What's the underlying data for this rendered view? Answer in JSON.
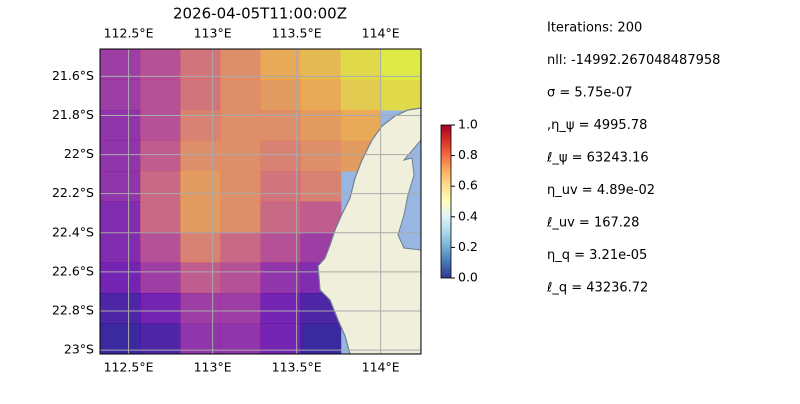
{
  "chart_data": {
    "type": "map",
    "title": "2026-04-05T11:00:00Z",
    "xlim": [
      112.33,
      114.24
    ],
    "ylim": [
      23.02,
      21.46
    ],
    "xticks": [
      {
        "value": 112.5,
        "label": "112.5°E"
      },
      {
        "value": 113,
        "label": "113°E"
      },
      {
        "value": 113.5,
        "label": "113.5°E"
      },
      {
        "value": 114,
        "label": "114°E"
      }
    ],
    "yticks": [
      {
        "value": 21.6,
        "label": "21.6°S"
      },
      {
        "value": 21.8,
        "label": "21.8°S"
      },
      {
        "value": 22,
        "label": "22°S"
      },
      {
        "value": 22.2,
        "label": "22.2°S"
      },
      {
        "value": 22.4,
        "label": "22.4°S"
      },
      {
        "value": 22.6,
        "label": "22.6°S"
      },
      {
        "value": 22.8,
        "label": "22.8°S"
      },
      {
        "value": 23,
        "label": "23°S"
      }
    ],
    "grid": true,
    "field_colors": [
      "#0d0887",
      "#6a00a8",
      "#b12a90",
      "#e16462",
      "#fca636",
      "#f0f921"
    ],
    "field": [
      [
        0.35,
        0.45,
        0.6,
        0.7,
        0.8,
        0.85,
        0.95,
        1.0
      ],
      [
        0.35,
        0.45,
        0.6,
        0.7,
        0.75,
        0.8,
        0.9,
        0.95
      ],
      [
        0.3,
        0.45,
        0.65,
        0.7,
        0.7,
        0.75,
        0.8,
        null
      ],
      [
        0.3,
        0.5,
        0.7,
        0.7,
        0.65,
        0.7,
        0.75,
        null
      ],
      [
        0.3,
        0.55,
        0.75,
        0.7,
        0.6,
        0.65,
        null,
        null
      ],
      [
        0.25,
        0.55,
        0.75,
        0.7,
        0.55,
        0.5,
        null,
        null
      ],
      [
        0.25,
        0.45,
        0.65,
        0.55,
        0.45,
        0.35,
        null,
        null
      ],
      [
        0.2,
        0.35,
        0.5,
        0.45,
        0.3,
        0.25,
        null,
        null
      ],
      [
        0.1,
        0.2,
        0.35,
        0.35,
        0.2,
        0.1,
        null,
        null
      ],
      [
        0.05,
        0.1,
        0.3,
        0.3,
        0.2,
        0.05,
        null,
        null
      ]
    ],
    "colorbar": {
      "colors": [
        "#313695",
        "#4575b4",
        "#74add1",
        "#abd9e9",
        "#e0f3f8",
        "#ffffbf",
        "#fee090",
        "#fdae61",
        "#f46d43",
        "#d73027",
        "#a50026"
      ],
      "lim": [
        0,
        1
      ],
      "ticks": [
        {
          "value": 0,
          "label": "0.0"
        },
        {
          "value": 0.2,
          "label": "0.2"
        },
        {
          "value": 0.4,
          "label": "0.4"
        },
        {
          "value": 0.6,
          "label": "0.6"
        },
        {
          "value": 0.8,
          "label": "0.8"
        },
        {
          "value": 1,
          "label": "1.0"
        }
      ]
    }
  },
  "stats": [
    "Iterations: 200",
    "nll: -14992.267048487958",
    "σ = 5.75e-07",
    ",η_ψ = 4995.78",
    "ℓ_ψ = 63243.16",
    "η_uv = 4.89e-02",
    "ℓ_uv = 167.28",
    "η_q = 3.21e-05",
    "ℓ_q = 43236.72"
  ]
}
